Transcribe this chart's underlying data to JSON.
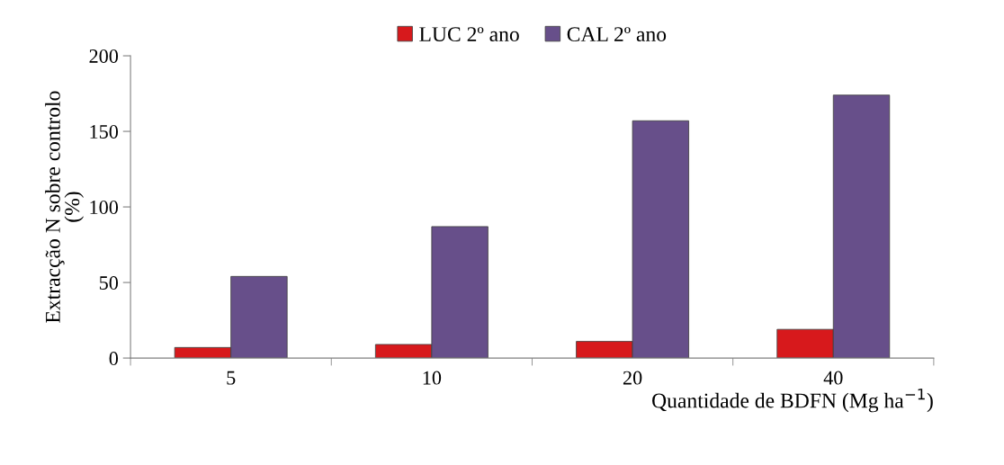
{
  "chart_data": {
    "type": "bar",
    "xlabel": "Quantidade de BDFN (Mg ha$^{−1}$)",
    "ylabel": "Extracção N sobre controlo\n(%)",
    "categories": [
      "5",
      "10",
      "20",
      "40"
    ],
    "series": [
      {
        "name": "LUC 2º ano",
        "color": "#d7191c",
        "values": [
          7,
          9,
          11,
          19
        ]
      },
      {
        "name": "CAL 2º ano",
        "color": "#674f8a",
        "values": [
          54,
          87,
          157,
          174
        ]
      }
    ],
    "ylim": [
      0,
      200
    ],
    "yticks": [
      0,
      50,
      100,
      150,
      200
    ],
    "grid": false,
    "legend": "top"
  }
}
